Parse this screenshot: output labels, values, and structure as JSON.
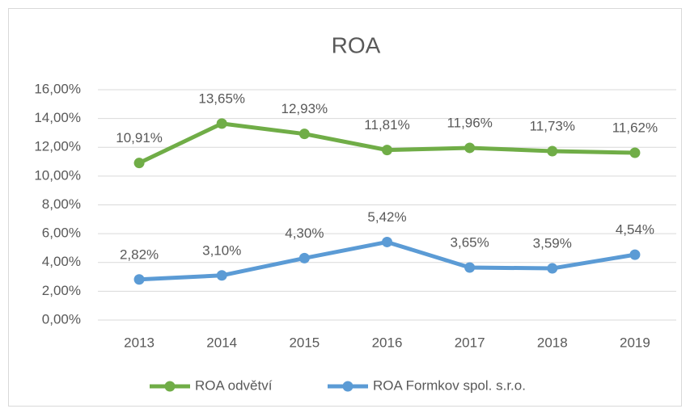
{
  "chart_data": {
    "type": "line",
    "title": "ROA",
    "categories": [
      "2013",
      "2014",
      "2015",
      "2016",
      "2017",
      "2018",
      "2019"
    ],
    "series": [
      {
        "name": "ROA odvětví",
        "color": "#70ad47",
        "values": [
          10.91,
          13.65,
          12.93,
          11.81,
          11.96,
          11.73,
          11.62
        ],
        "value_labels": [
          "10,91%",
          "13,65%",
          "12,93%",
          "11,81%",
          "11,96%",
          "11,73%",
          "11,62%"
        ]
      },
      {
        "name": "ROA Formkov spol. s.r.o.",
        "color": "#5b9bd5",
        "values": [
          2.82,
          3.1,
          4.3,
          5.42,
          3.65,
          3.59,
          4.54
        ],
        "value_labels": [
          "2,82%",
          "3,10%",
          "4,30%",
          "5,42%",
          "3,65%",
          "3,59%",
          "4,54%"
        ]
      }
    ],
    "ylim": [
      0,
      16
    ],
    "yticks": [
      {
        "value": 0,
        "label": "0,00%"
      },
      {
        "value": 2,
        "label": "2,00%"
      },
      {
        "value": 4,
        "label": "4,00%"
      },
      {
        "value": 6,
        "label": "6,00%"
      },
      {
        "value": 8,
        "label": "8,00%"
      },
      {
        "value": 10,
        "label": "10,00%"
      },
      {
        "value": 12,
        "label": "12,00%"
      },
      {
        "value": 14,
        "label": "14,00%"
      },
      {
        "value": 16,
        "label": "16,00%"
      }
    ],
    "grid": true,
    "legend": "bottom"
  }
}
